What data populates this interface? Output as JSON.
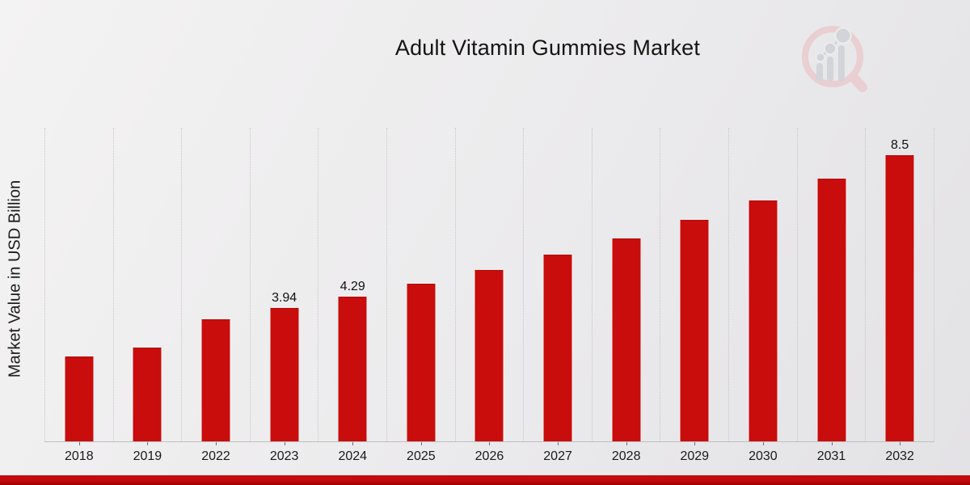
{
  "title": "Adult Vitamin Gummies Market",
  "ylabel": "Market Value in USD Billion",
  "logo": {
    "name": "magnifier-bar-chart-logo"
  },
  "colors": {
    "bar": "#c90c0c",
    "bar_top_edge": "#b20909",
    "gridline": "#c6c6c6",
    "axis_line": "#bfbfbf",
    "footer_red_top": "#c50a0c",
    "footer_red_bottom": "#990103",
    "background_light": "#f4f3f3",
    "background_dark": "#e3e2e5",
    "logo_ring_pink": "#e9ced2",
    "logo_gray": "#d2d4da",
    "text": "#141414"
  },
  "chart_data": {
    "type": "bar",
    "title": "Adult Vitamin Gummies Market",
    "xlabel": "",
    "ylabel": "Market Value in USD Billion",
    "categories": [
      "2018",
      "2019",
      "2022",
      "2023",
      "2024",
      "2025",
      "2026",
      "2027",
      "2028",
      "2029",
      "2030",
      "2031",
      "2032"
    ],
    "values": [
      2.5,
      2.78,
      3.62,
      3.94,
      4.29,
      4.67,
      5.09,
      5.54,
      6.03,
      6.57,
      7.15,
      7.79,
      8.5
    ],
    "bar_labels": [
      "",
      "",
      "",
      "3.94",
      "4.29",
      "",
      "",
      "",
      "",
      "",
      "",
      "",
      "8.5"
    ],
    "ylim": [
      0,
      9.34
    ],
    "grid": "vertical-dotted",
    "legend": "none",
    "y_tick_labels": "none"
  }
}
